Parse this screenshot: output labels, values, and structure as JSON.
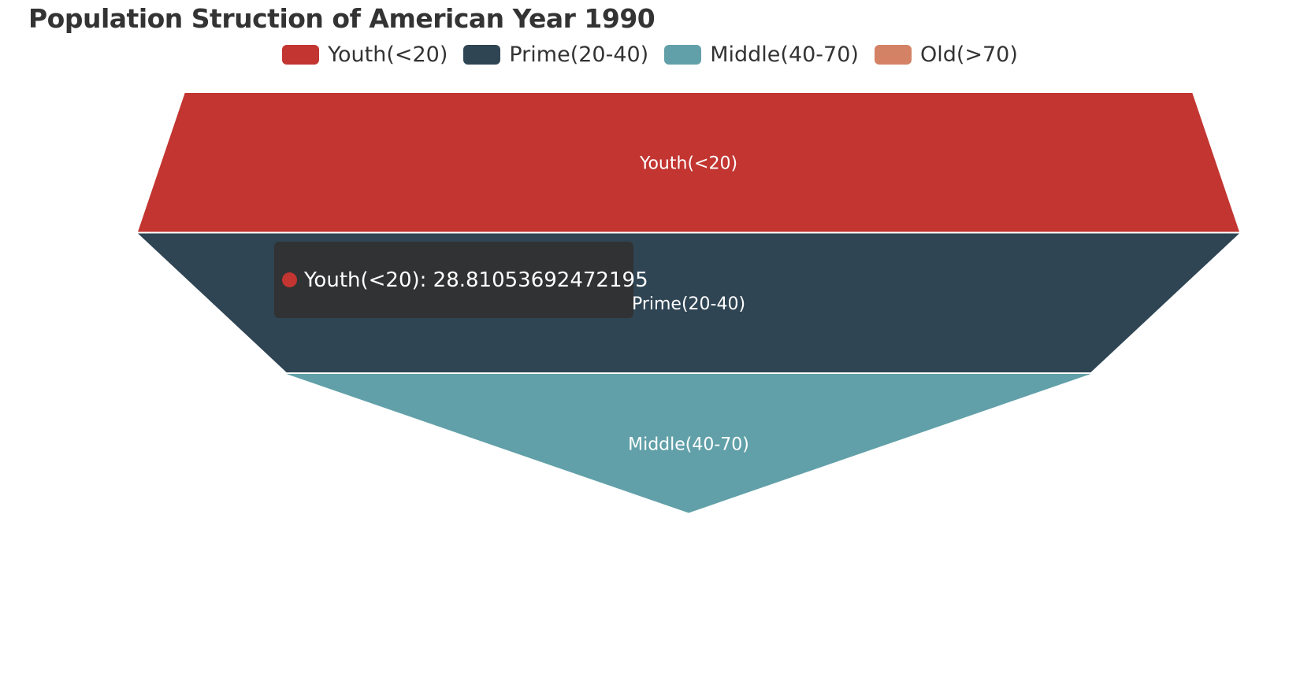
{
  "chart_data": {
    "type": "funnel",
    "title": "Population Struction of American Year 1990",
    "sort": "none",
    "categories": [
      "Youth(<20)",
      "Prime(20-40)",
      "Middle(40-70)",
      "Old(>70)"
    ],
    "values": [
      28.81053692472195,
      31.5,
      23.0,
      0
    ],
    "colors": [
      "#c23531",
      "#2f4554",
      "#61a0a8",
      "#d48265"
    ],
    "legend": {
      "position": "top",
      "entries": [
        "Youth(<20)",
        "Prime(20-40)",
        "Middle(40-70)",
        "Old(>70)"
      ]
    },
    "labels": {
      "position": "inside",
      "color": "#ffffff"
    }
  },
  "tooltip": {
    "series_name": "Youth(<20)",
    "value": "28.81053692472195",
    "text": "Youth(<20): 28.81053692472195",
    "dot_color": "#c23531"
  }
}
